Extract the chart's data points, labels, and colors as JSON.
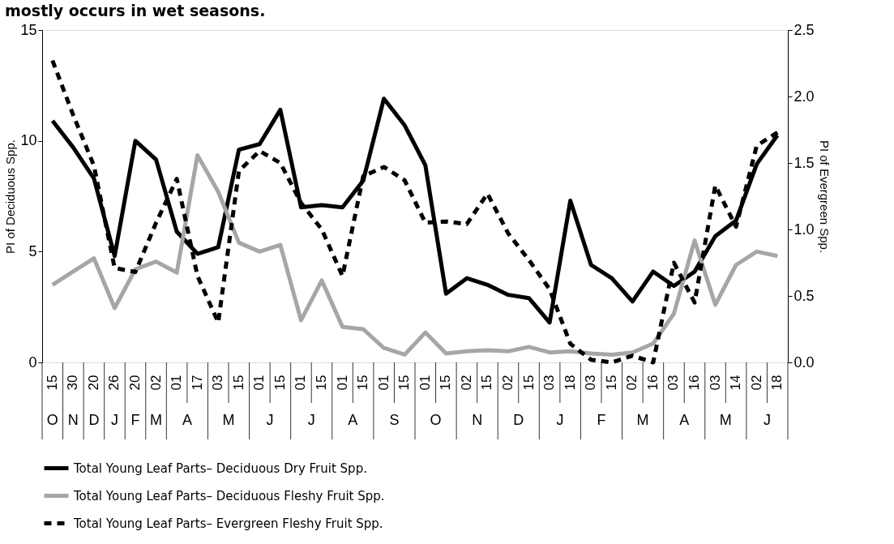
{
  "chart_data": {
    "type": "line",
    "title": "mostly occurs in wet seasons.",
    "ylabel": "PI of Deciduous Spp.",
    "y2label": "PI of Evergreen Spp.",
    "categories": [
      "15",
      "30",
      "20",
      "26",
      "20",
      "02",
      "01",
      "17",
      "03",
      "15",
      "01",
      "15",
      "01",
      "15",
      "01",
      "15",
      "01",
      "15",
      "01",
      "15",
      "02",
      "15",
      "02",
      "15",
      "03",
      "18",
      "03",
      "15",
      "02",
      "16",
      "03",
      "16",
      "03",
      "14",
      "02",
      "18"
    ],
    "annotations": [
      "O",
      "N",
      "D",
      "J",
      "F",
      "M",
      "A",
      "M",
      "J",
      "J",
      "A",
      "S",
      "O",
      "N",
      "D",
      "J",
      "F",
      "M",
      "A",
      "M",
      "J"
    ],
    "series": [
      {
        "name": "Total Young Leaf Parts– Deciduous Dry Fruit Spp.",
        "color": "#000000",
        "line_style": "solid",
        "values": [
          10.9,
          9.7,
          8.3,
          4.8,
          10.0,
          9.15,
          5.9,
          4.9,
          5.2,
          9.6,
          9.85,
          11.4,
          7.0,
          7.1,
          7.0,
          8.2,
          11.9,
          10.7,
          8.9,
          3.1,
          3.8,
          3.5,
          3.05,
          2.9,
          1.8,
          7.3,
          4.4,
          3.8,
          2.75,
          4.1,
          3.45,
          4.1,
          5.7,
          6.4,
          8.95,
          10.25
        ]
      },
      {
        "name": "Total Young Leaf Parts– Deciduous Fleshy Fruit Spp.",
        "color": "#a6a6a6",
        "line_style": "solid",
        "values": [
          3.5,
          4.1,
          4.7,
          2.45,
          4.2,
          4.55,
          4.05,
          9.35,
          7.7,
          5.4,
          5.0,
          5.3,
          1.9,
          3.7,
          1.6,
          1.5,
          0.65,
          0.35,
          1.35,
          0.4,
          0.5,
          0.55,
          0.5,
          0.7,
          0.45,
          0.5,
          0.4,
          0.35,
          0.45,
          0.85,
          2.2,
          5.5,
          2.6,
          4.4,
          5.0,
          4.8
        ]
      },
      {
        "name": "Total Young Leaf Parts– Evergreen Fleshy Fruit Spp.",
        "color": "#000000",
        "line_style": "dashed",
        "axis": "y2",
        "values": [
          2.27,
          1.86,
          1.48,
          0.71,
          0.68,
          1.05,
          1.38,
          0.65,
          0.3,
          1.44,
          1.59,
          1.5,
          1.2,
          1.0,
          0.65,
          1.4,
          1.47,
          1.37,
          1.05,
          1.06,
          1.04,
          1.27,
          0.97,
          0.77,
          0.55,
          0.14,
          0.02,
          0.0,
          0.05,
          0.0,
          0.75,
          0.45,
          1.33,
          1.02,
          1.63,
          1.73
        ]
      }
    ],
    "ylim": [
      0,
      15
    ],
    "yticks": [
      0,
      5,
      10,
      15
    ],
    "y2lim": [
      0,
      2.5
    ],
    "y2ticks": [
      {
        "value": 0,
        "label": "0.0"
      },
      {
        "value": 0.5,
        "label": "0.5"
      },
      {
        "value": 1,
        "label": "1.0"
      },
      {
        "value": 1.5,
        "label": "1.5"
      },
      {
        "value": 2,
        "label": "2.0"
      },
      {
        "value": 2.5,
        "label": "2.5"
      }
    ],
    "grid": false,
    "legend": "bottom"
  }
}
